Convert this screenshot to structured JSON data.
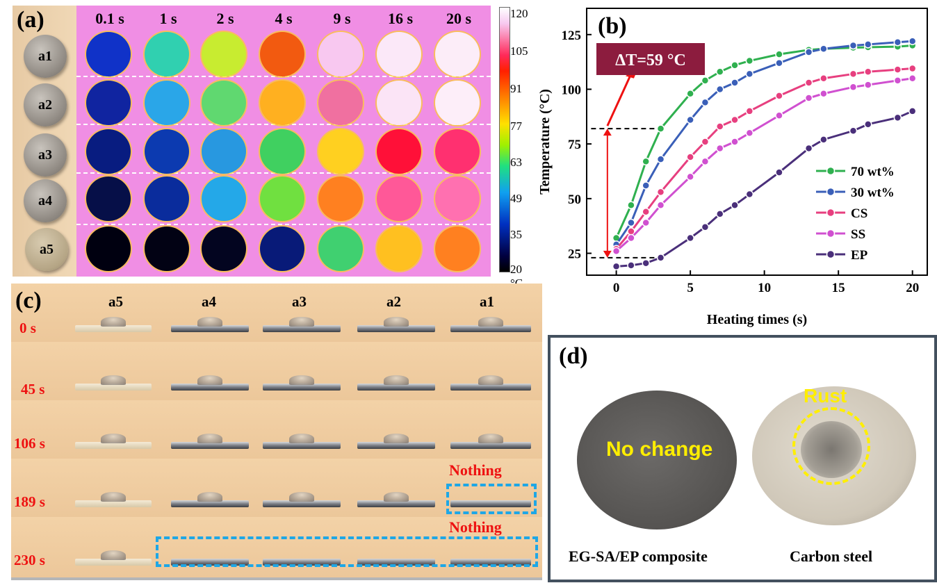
{
  "panel_a": {
    "label": "(a)",
    "times": [
      "0.1 s",
      "1 s",
      "2 s",
      "4 s",
      "9 s",
      "16 s",
      "20 s"
    ],
    "samples": [
      "a1",
      "a2",
      "a3",
      "a4",
      "a5"
    ],
    "colorbar_ticks": [
      "120",
      "105",
      "91",
      "77",
      "63",
      "49",
      "35",
      "20 °C"
    ],
    "well_colors": [
      [
        "#1032c8",
        "#30d0b0",
        "#c8ec30",
        "#f25a10",
        "#f8c8f0",
        "#fbe8f8",
        "#fcedf8"
      ],
      [
        "#1024a0",
        "#2aa6e8",
        "#60d870",
        "#ffb020",
        "#f070a0",
        "#fbe4f6",
        "#fdeef9"
      ],
      [
        "#081c80",
        "#0c3ab0",
        "#2898e0",
        "#40d060",
        "#ffd020",
        "#ff1038",
        "#ff3070"
      ],
      [
        "#060f48",
        "#0a2c9c",
        "#24a8e8",
        "#70e040",
        "#ff8020",
        "#ff5898",
        "#ff70b0"
      ],
      [
        "#000010",
        "#020214",
        "#030520",
        "#081a78",
        "#40d070",
        "#ffc020",
        "#ff8020"
      ]
    ]
  },
  "chart_data": {
    "type": "line",
    "title": "",
    "xlabel": "Heating  times (s)",
    "ylabel": "Temperature (°C)",
    "xlim": [
      -2,
      21
    ],
    "ylim": [
      15,
      137
    ],
    "xticks": [
      0,
      5,
      10,
      15,
      20
    ],
    "yticks": [
      25,
      50,
      75,
      100,
      125
    ],
    "x": [
      0,
      1,
      2,
      3,
      5,
      6,
      7,
      8,
      9,
      11,
      13,
      14,
      16,
      17,
      19,
      20
    ],
    "series": [
      {
        "name": "70 wt%",
        "color": "#2fb04f",
        "values": [
          32,
          47,
          67,
          82,
          98,
          104,
          108,
          111,
          113,
          116,
          118,
          118.5,
          119,
          119.2,
          119.5,
          120
        ]
      },
      {
        "name": "30 wt%",
        "color": "#3a5fb8",
        "values": [
          29,
          39,
          56,
          68,
          86,
          94,
          100,
          103,
          107,
          112,
          117,
          118.5,
          120,
          120.5,
          121.5,
          122
        ]
      },
      {
        "name": "CS",
        "color": "#e73f7f",
        "values": [
          27,
          35,
          44,
          53,
          69,
          76,
          83,
          86,
          90,
          97,
          103,
          105,
          107,
          108,
          109,
          109.5
        ]
      },
      {
        "name": "SS",
        "color": "#d050d0",
        "values": [
          26,
          32,
          39,
          47,
          60,
          67,
          73,
          76,
          80,
          88,
          96,
          98,
          101,
          102,
          104,
          105
        ]
      },
      {
        "name": "EP",
        "color": "#4a2f7a",
        "values": [
          19,
          19.5,
          20.5,
          23,
          32,
          37,
          43,
          47,
          52,
          62,
          73,
          77,
          81,
          84,
          87,
          90
        ]
      }
    ],
    "legend_position": "bottom-right",
    "annotation": "ΔT=59 °C",
    "annotation_levels": [
      23,
      82
    ],
    "panel_label": "(b)"
  },
  "panel_c": {
    "label": "(c)",
    "columns": [
      "a5",
      "a4",
      "a3",
      "a2",
      "a1"
    ],
    "times": [
      "0 s",
      "45 s",
      "106 s",
      "189 s",
      "230 s"
    ],
    "nothing_label": "Nothing"
  },
  "panel_d": {
    "label": "(d)",
    "no_change": "No change",
    "rust": "Rust",
    "caption_left": "EG-SA/EP composite",
    "caption_right": "Carbon steel"
  }
}
